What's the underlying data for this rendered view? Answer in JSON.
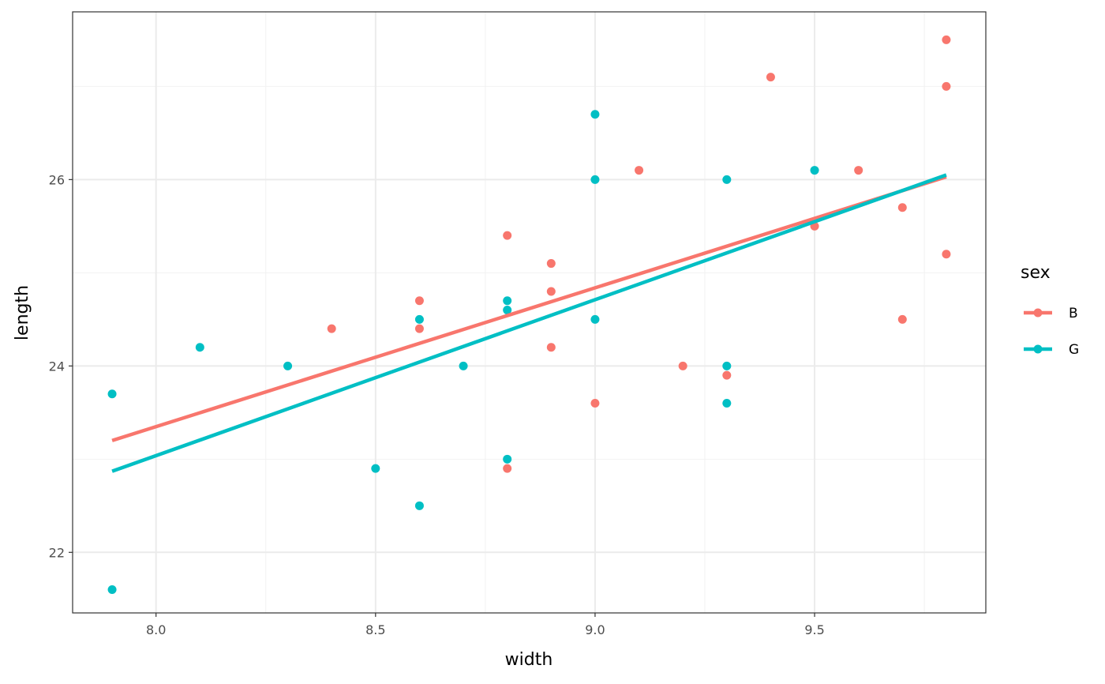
{
  "chart_data": {
    "type": "scatter",
    "title": "",
    "xlabel": "width",
    "ylabel": "length",
    "xlim": [
      7.81,
      9.89
    ],
    "ylim": [
      21.35,
      27.8
    ],
    "x_ticks": [
      "8.0",
      "8.5",
      "9.0",
      "9.5"
    ],
    "y_ticks": [
      "22",
      "24",
      "26"
    ],
    "grid": true,
    "legend": {
      "title": "sex",
      "position": "right"
    },
    "series": [
      {
        "name": "B",
        "color": "#F8766D",
        "points": [
          {
            "x": 8.4,
            "y": 24.4
          },
          {
            "x": 8.6,
            "y": 24.7
          },
          {
            "x": 8.6,
            "y": 24.4
          },
          {
            "x": 8.8,
            "y": 25.4
          },
          {
            "x": 8.8,
            "y": 22.9
          },
          {
            "x": 8.9,
            "y": 25.1
          },
          {
            "x": 8.9,
            "y": 24.8
          },
          {
            "x": 8.9,
            "y": 24.2
          },
          {
            "x": 9.0,
            "y": 23.6
          },
          {
            "x": 9.1,
            "y": 26.1
          },
          {
            "x": 9.2,
            "y": 24.0
          },
          {
            "x": 9.3,
            "y": 23.9
          },
          {
            "x": 9.4,
            "y": 27.1
          },
          {
            "x": 9.5,
            "y": 25.5
          },
          {
            "x": 9.6,
            "y": 26.1
          },
          {
            "x": 9.7,
            "y": 25.7
          },
          {
            "x": 9.7,
            "y": 24.5
          },
          {
            "x": 9.8,
            "y": 27.5
          },
          {
            "x": 9.8,
            "y": 27.0
          },
          {
            "x": 9.8,
            "y": 25.2
          }
        ],
        "fit_line": {
          "x": [
            7.9,
            9.8
          ],
          "y": [
            23.2,
            26.03
          ]
        }
      },
      {
        "name": "G",
        "color": "#00BFC4",
        "points": [
          {
            "x": 7.9,
            "y": 23.7
          },
          {
            "x": 7.9,
            "y": 21.6
          },
          {
            "x": 8.1,
            "y": 24.2
          },
          {
            "x": 8.3,
            "y": 24.0
          },
          {
            "x": 8.5,
            "y": 22.9
          },
          {
            "x": 8.6,
            "y": 24.5
          },
          {
            "x": 8.6,
            "y": 22.5
          },
          {
            "x": 8.7,
            "y": 24.0
          },
          {
            "x": 8.8,
            "y": 24.7
          },
          {
            "x": 8.8,
            "y": 24.6
          },
          {
            "x": 8.8,
            "y": 23.0
          },
          {
            "x": 9.0,
            "y": 26.7
          },
          {
            "x": 9.0,
            "y": 26.0
          },
          {
            "x": 9.0,
            "y": 24.5
          },
          {
            "x": 9.3,
            "y": 26.0
          },
          {
            "x": 9.3,
            "y": 24.0
          },
          {
            "x": 9.3,
            "y": 23.6
          },
          {
            "x": 9.5,
            "y": 26.1
          }
        ],
        "fit_line": {
          "x": [
            7.9,
            9.8
          ],
          "y": [
            22.87,
            26.05
          ]
        }
      }
    ]
  }
}
